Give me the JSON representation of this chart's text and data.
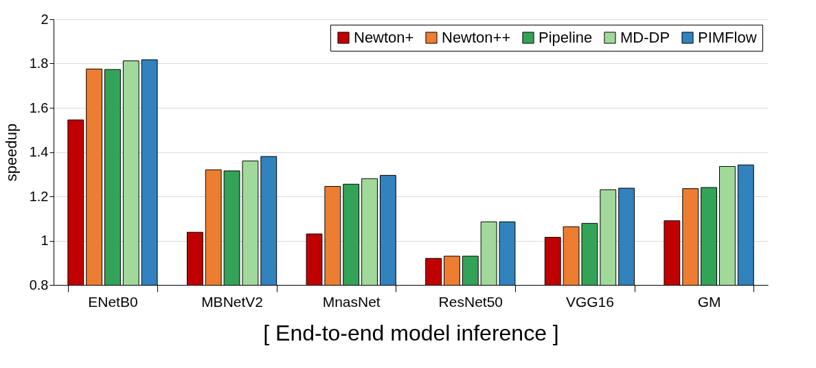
{
  "chart_data": {
    "type": "bar",
    "xlabel": "[ End-to-end model inference ]",
    "ylabel": "speedup",
    "categories": [
      "ENetB0",
      "MBNetV2",
      "MnasNet",
      "ResNet50",
      "VGG16",
      "GM"
    ],
    "series": [
      {
        "name": "Newton+",
        "color": "#c00000",
        "values": [
          1.545,
          1.038,
          1.03,
          0.92,
          1.015,
          1.09
        ]
      },
      {
        "name": "Newton++",
        "color": "#ed7d31",
        "values": [
          1.775,
          1.32,
          1.245,
          0.93,
          1.063,
          1.235
        ]
      },
      {
        "name": "Pipeline",
        "color": "#33a457",
        "values": [
          1.773,
          1.315,
          1.255,
          0.93,
          1.078,
          1.24
        ]
      },
      {
        "name": "MD-DP",
        "color": "#a1d99b",
        "values": [
          1.812,
          1.36,
          1.28,
          1.085,
          1.23,
          1.335
        ]
      },
      {
        "name": "PIMFlow",
        "color": "#3182bd",
        "values": [
          1.817,
          1.38,
          1.295,
          1.085,
          1.237,
          1.342
        ]
      }
    ],
    "ylim": [
      0.8,
      2
    ],
    "yticks": [
      0.8,
      1,
      1.2,
      1.4,
      1.6,
      1.8,
      2
    ],
    "grid": "y",
    "legend": "top right"
  }
}
